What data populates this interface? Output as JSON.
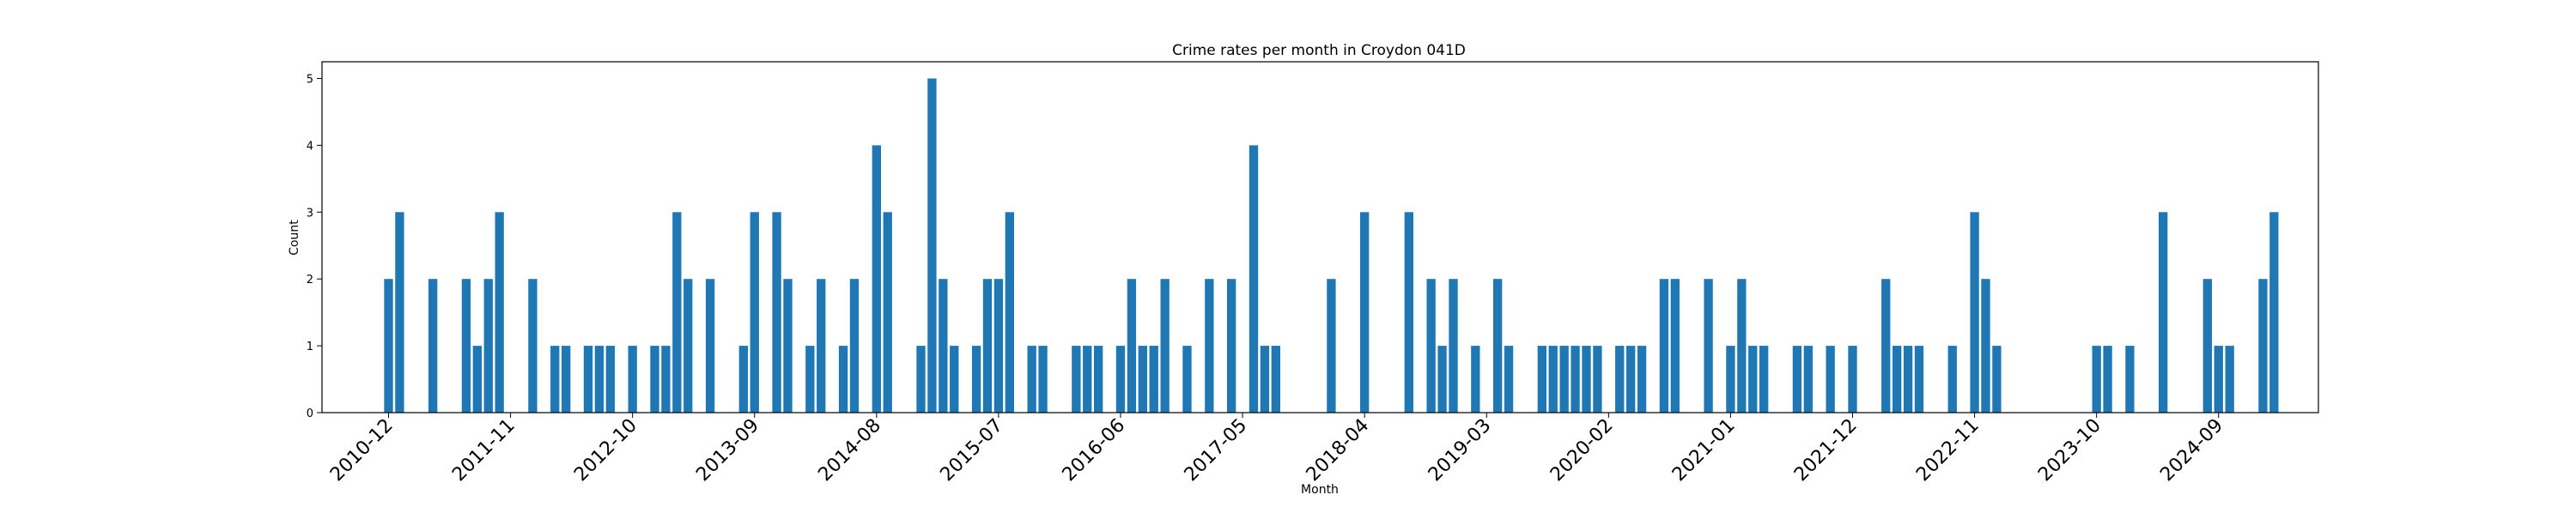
{
  "chart_data": {
    "type": "bar",
    "title": "Crime rates per month in Croydon 041D",
    "xlabel": "Month",
    "ylabel": "Count",
    "ylim": [
      0,
      5.25
    ],
    "yticks": [
      0,
      1,
      2,
      3,
      4,
      5
    ],
    "xticks": [
      "2010-12",
      "2011-11",
      "2012-10",
      "2013-09",
      "2014-08",
      "2015-07",
      "2016-06",
      "2017-05",
      "2018-04",
      "2019-03",
      "2020-02",
      "2021-01",
      "2021-12",
      "2022-11",
      "2023-10",
      "2024-09"
    ],
    "x_range": [
      "2010-06",
      "2025-06"
    ],
    "grid": false,
    "legend": "none",
    "bar_color": "#1f77b4",
    "x": [
      "2010-12",
      "2011-01",
      "2011-04",
      "2011-07",
      "2011-08",
      "2011-09",
      "2011-10",
      "2012-01",
      "2012-03",
      "2012-04",
      "2012-06",
      "2012-07",
      "2012-08",
      "2012-10",
      "2012-12",
      "2013-01",
      "2013-02",
      "2013-03",
      "2013-05",
      "2013-08",
      "2013-09",
      "2013-11",
      "2013-12",
      "2014-02",
      "2014-03",
      "2014-05",
      "2014-06",
      "2014-08",
      "2014-09",
      "2014-12",
      "2015-01",
      "2015-02",
      "2015-03",
      "2015-05",
      "2015-06",
      "2015-07",
      "2015-08",
      "2015-10",
      "2015-11",
      "2016-02",
      "2016-03",
      "2016-04",
      "2016-06",
      "2016-07",
      "2016-08",
      "2016-09",
      "2016-10",
      "2016-12",
      "2017-02",
      "2017-04",
      "2017-06",
      "2017-07",
      "2017-08",
      "2018-01",
      "2018-04",
      "2018-08",
      "2018-10",
      "2018-11",
      "2018-12",
      "2019-02",
      "2019-04",
      "2019-05",
      "2019-08",
      "2019-09",
      "2019-10",
      "2019-11",
      "2019-12",
      "2020-01",
      "2020-03",
      "2020-04",
      "2020-05",
      "2020-07",
      "2020-08",
      "2020-11",
      "2021-01",
      "2021-02",
      "2021-03",
      "2021-04",
      "2021-07",
      "2021-08",
      "2021-10",
      "2021-12",
      "2022-03",
      "2022-04",
      "2022-05",
      "2022-06",
      "2022-09",
      "2022-11",
      "2022-12",
      "2023-01",
      "2023-10",
      "2023-11",
      "2024-01",
      "2024-04",
      "2024-08",
      "2024-09",
      "2024-10",
      "2025-01",
      "2025-02"
    ],
    "values": [
      2,
      3,
      2,
      2,
      1,
      2,
      3,
      2,
      1,
      1,
      1,
      1,
      1,
      1,
      1,
      1,
      3,
      2,
      2,
      1,
      3,
      3,
      2,
      1,
      2,
      1,
      2,
      4,
      3,
      1,
      5,
      2,
      1,
      1,
      2,
      2,
      3,
      1,
      1,
      1,
      1,
      1,
      1,
      2,
      1,
      1,
      2,
      1,
      2,
      2,
      4,
      1,
      1,
      2,
      3,
      3,
      2,
      1,
      2,
      1,
      2,
      1,
      1,
      1,
      1,
      1,
      1,
      1,
      1,
      1,
      1,
      2,
      2,
      2,
      1,
      2,
      1,
      1,
      1,
      1,
      1,
      1,
      2,
      1,
      1,
      1,
      1,
      3,
      2,
      1,
      1,
      1,
      1,
      3,
      2,
      1,
      1,
      2,
      3
    ]
  }
}
